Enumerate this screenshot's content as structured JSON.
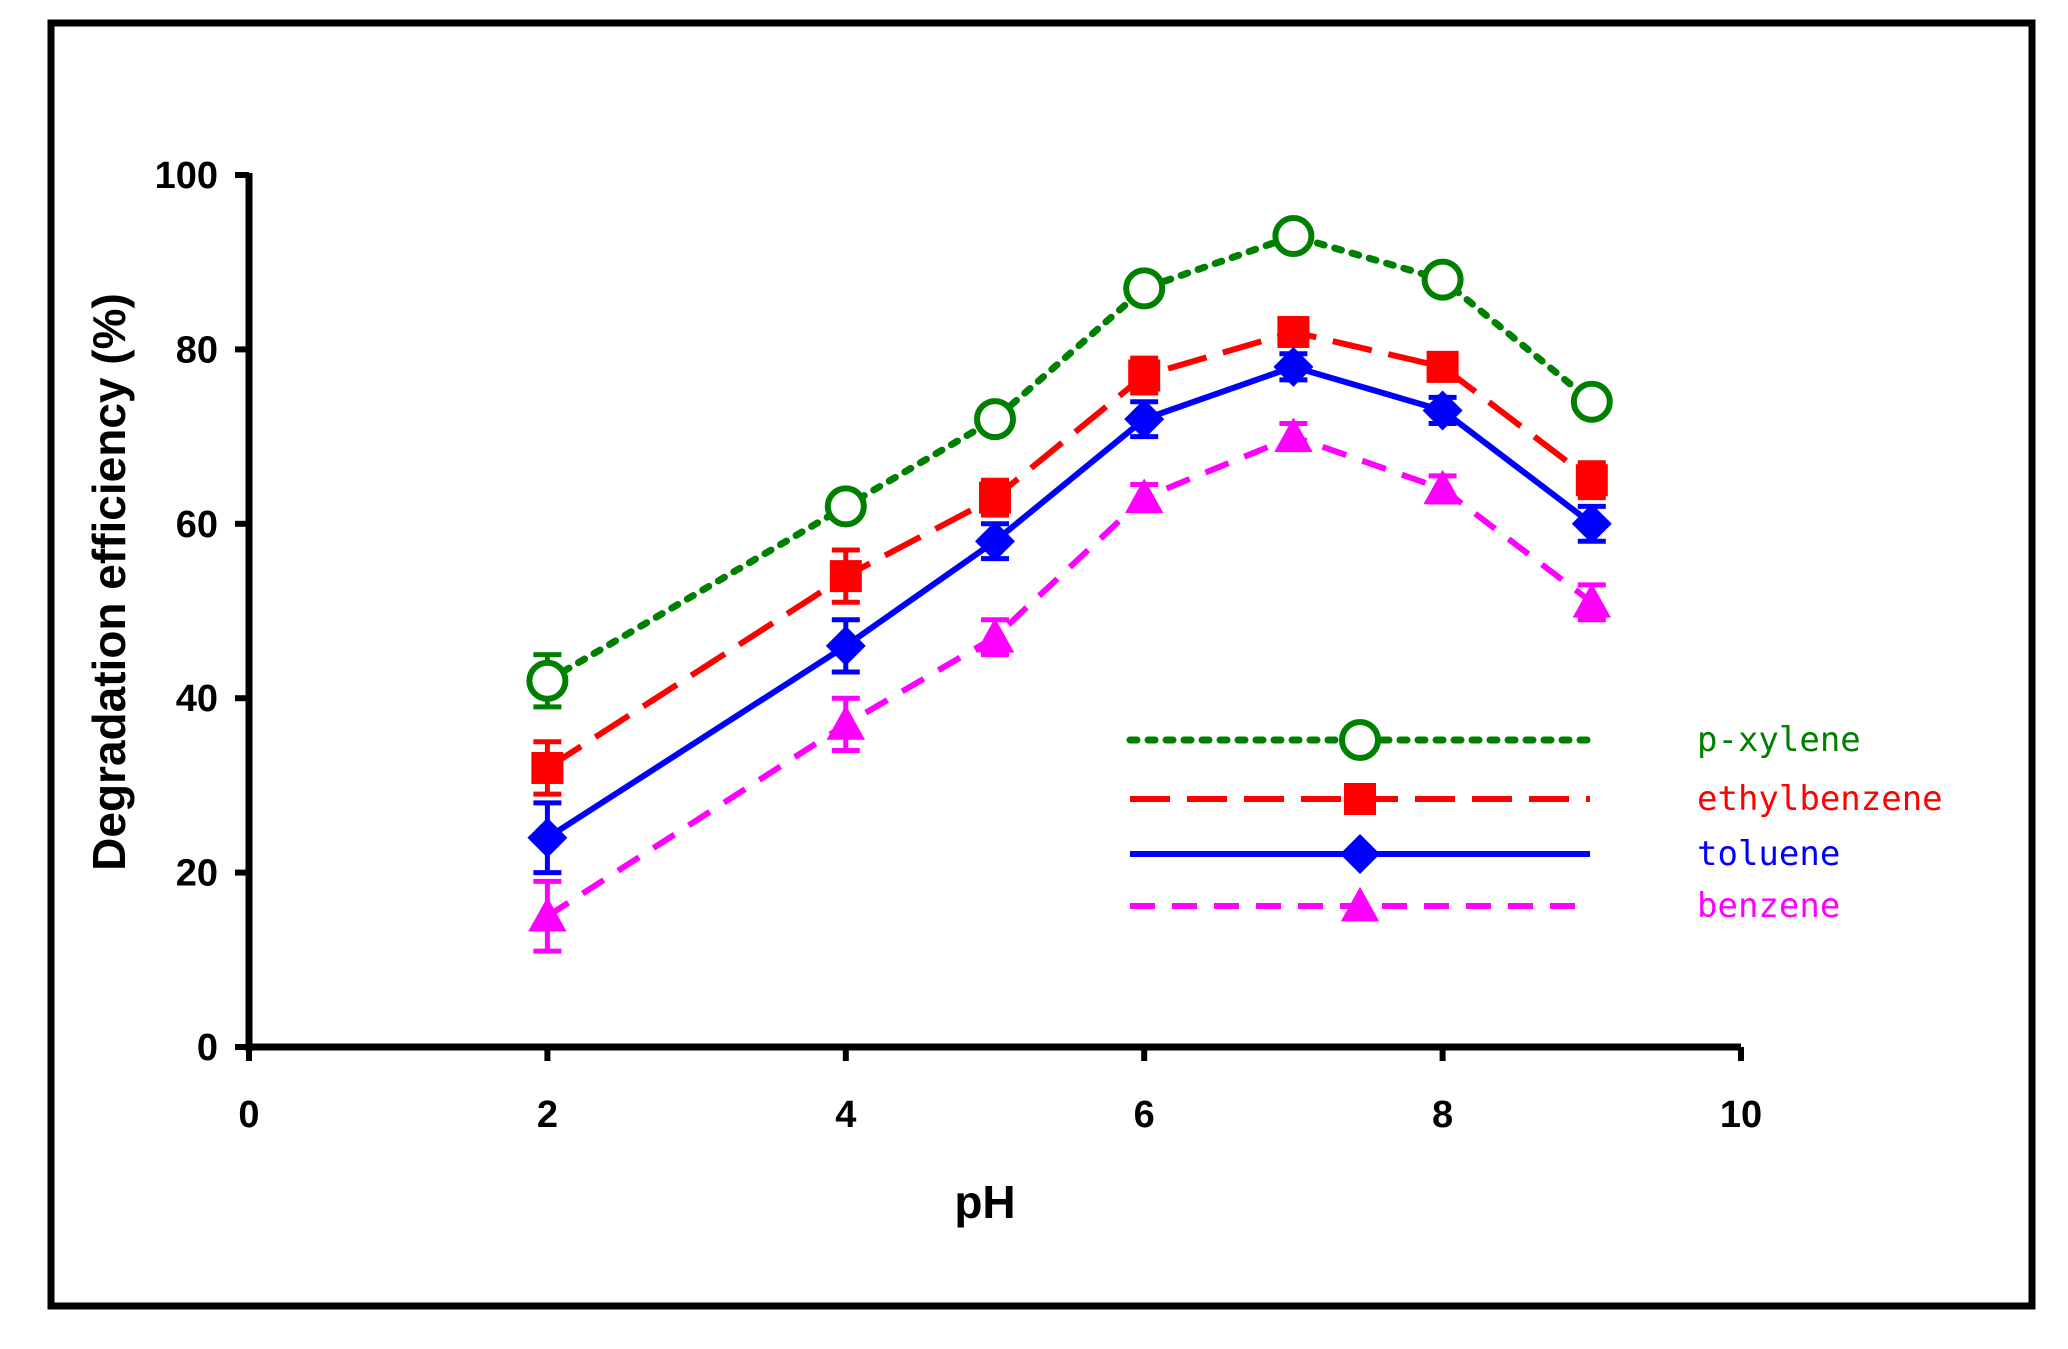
{
  "chart_data": {
    "type": "line",
    "title": "",
    "xlabel": "pH",
    "ylabel": "Degradation efficiency (%)",
    "xlim": [
      0,
      10
    ],
    "ylim": [
      0,
      100
    ],
    "xticks": [
      "0",
      "2",
      "4",
      "6",
      "8",
      "10"
    ],
    "yticks": [
      "0",
      "20",
      "40",
      "60",
      "80",
      "100"
    ],
    "grid": false,
    "legend_position": "right-center",
    "x": [
      2,
      4,
      5,
      6,
      7,
      8,
      9
    ],
    "series": [
      {
        "name": "p-xylene",
        "color": "#008000",
        "marker": "open-circle",
        "line_style": "dotted",
        "values": [
          42,
          62,
          72,
          87,
          93,
          88,
          74
        ],
        "errors": [
          3,
          1.5,
          1.5,
          1.5,
          1.5,
          1.5,
          1.5
        ]
      },
      {
        "name": "ethylbenzene",
        "color": "#ff0000",
        "marker": "filled-square",
        "line_style": "long-dash",
        "values": [
          32,
          54,
          63,
          77,
          82,
          78,
          65
        ],
        "errors": [
          3,
          3,
          2,
          2,
          1.5,
          1.5,
          2
        ]
      },
      {
        "name": "toluene",
        "color": "#0000ff",
        "marker": "filled-diamond",
        "line_style": "solid",
        "values": [
          24,
          46,
          58,
          72,
          78,
          73,
          60
        ],
        "errors": [
          4,
          3,
          2,
          2,
          1.5,
          1.5,
          2
        ]
      },
      {
        "name": "benzene",
        "color": "#ff00ff",
        "marker": "filled-triangle",
        "line_style": "dashed",
        "values": [
          15,
          37,
          47,
          63,
          70,
          64,
          51
        ],
        "errors": [
          4,
          3,
          2,
          1.5,
          1.5,
          1.5,
          2
        ]
      }
    ]
  }
}
